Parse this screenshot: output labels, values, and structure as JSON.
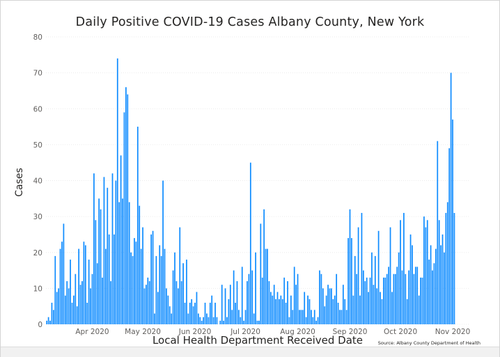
{
  "chart_data": {
    "type": "bar",
    "title": "Daily Positive COVID-19 Cases Albany County, New York",
    "xlabel": "Local Health Department Received Date",
    "ylabel": "Cases",
    "ylim": [
      0,
      80
    ],
    "yticks": [
      0,
      10,
      20,
      30,
      40,
      50,
      60,
      70,
      80
    ],
    "grid": true,
    "x_start": "2020-03-05",
    "x_end": "2020-11-10",
    "x_ticks": [
      {
        "label": "Apr 2020",
        "date": "2020-04-01"
      },
      {
        "label": "May 2020",
        "date": "2020-05-01"
      },
      {
        "label": "Jun 2020",
        "date": "2020-06-01"
      },
      {
        "label": "Jul 2020",
        "date": "2020-07-01"
      },
      {
        "label": "Aug 2020",
        "date": "2020-08-01"
      },
      {
        "label": "Sep 2020",
        "date": "2020-09-01"
      },
      {
        "label": "Oct 2020",
        "date": "2020-10-01"
      },
      {
        "label": "Nov 2020",
        "date": "2020-11-01"
      }
    ],
    "bar_color": "#118dff",
    "values": [
      1,
      2,
      1,
      6,
      4,
      19,
      9,
      10,
      21,
      23,
      28,
      8,
      12,
      10,
      18,
      6,
      8,
      14,
      5,
      21,
      11,
      12,
      23,
      22,
      6,
      18,
      10,
      14,
      42,
      29,
      17,
      35,
      32,
      13,
      41,
      21,
      38,
      25,
      12,
      42,
      25,
      40,
      74,
      34,
      47,
      35,
      59,
      66,
      64,
      34,
      20,
      19,
      24,
      23,
      55,
      33,
      21,
      27,
      10,
      11,
      13,
      12,
      25,
      26,
      3,
      19,
      9,
      22,
      19,
      40,
      21,
      10,
      8,
      5,
      3,
      15,
      20,
      12,
      10,
      27,
      12,
      17,
      6,
      18,
      3,
      6,
      7,
      5,
      6,
      9,
      3,
      2,
      1,
      2,
      6,
      3,
      2,
      6,
      8,
      2,
      6,
      2,
      0,
      1,
      11,
      1,
      10,
      2,
      7,
      11,
      4,
      15,
      6,
      12,
      4,
      2,
      16,
      1,
      4,
      12,
      14,
      45,
      15,
      3,
      20,
      1,
      1,
      28,
      13,
      32,
      21,
      21,
      12,
      9,
      8,
      11,
      7,
      9,
      7,
      8,
      7,
      13,
      6,
      12,
      2,
      8,
      4,
      16,
      11,
      14,
      4,
      4,
      4,
      9,
      2,
      8,
      7,
      4,
      2,
      4,
      1,
      2,
      15,
      14,
      10,
      5,
      8,
      11,
      10,
      10,
      7,
      8,
      14,
      6,
      4,
      4,
      11,
      7,
      4,
      24,
      32,
      24,
      8,
      19,
      14,
      27,
      8,
      31,
      15,
      12,
      13,
      9,
      13,
      20,
      11,
      19,
      10,
      26,
      9,
      7,
      13,
      13,
      14,
      16,
      27,
      9,
      14,
      14,
      16,
      20,
      29,
      15,
      31,
      14,
      7,
      15,
      25,
      22,
      14,
      16,
      16,
      8,
      13,
      13,
      30,
      27,
      29,
      18,
      22,
      15,
      17,
      21,
      51,
      29,
      22,
      25,
      20,
      31,
      34,
      49,
      70,
      57,
      31
    ]
  },
  "source_text": "Source: Albany County Department of Health"
}
